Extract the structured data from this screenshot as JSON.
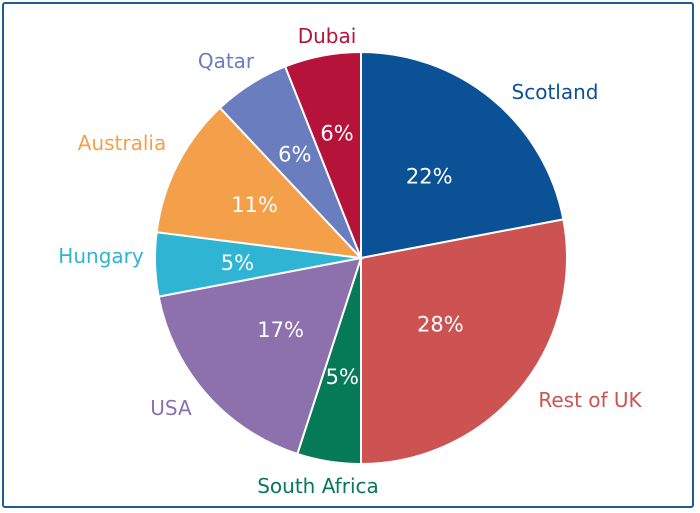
{
  "chart_data": {
    "type": "pie",
    "start_angle_deg": 0,
    "direction": "clockwise",
    "slices": [
      {
        "label": "Scotland",
        "value": 22,
        "display": "22%",
        "color": "#0a5196"
      },
      {
        "label": "Rest of UK",
        "value": 28,
        "display": "28%",
        "color": "#cc5351"
      },
      {
        "label": "South Africa",
        "value": 5,
        "display": "5%",
        "color": "#067a57"
      },
      {
        "label": "USA",
        "value": 17,
        "display": "17%",
        "color": "#8c71ad"
      },
      {
        "label": "Hungary",
        "value": 5,
        "display": "5%",
        "color": "#2fb5d3"
      },
      {
        "label": "Australia",
        "value": 11,
        "display": "11%",
        "color": "#f4a04a"
      },
      {
        "label": "Qatar",
        "value": 6,
        "display": "6%",
        "color": "#6a7dbf"
      },
      {
        "label": "Dubai",
        "value": 6,
        "display": "6%",
        "color": "#b6133b"
      }
    ]
  }
}
